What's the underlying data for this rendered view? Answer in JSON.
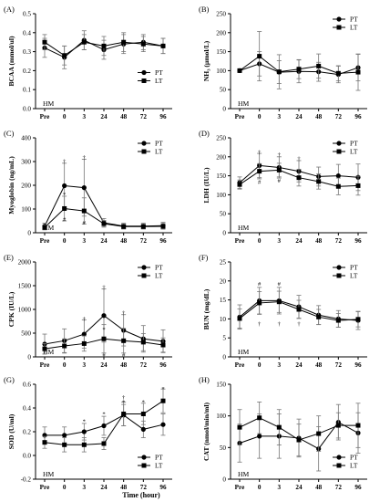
{
  "figure": {
    "x_axis_title": "Time (hour)",
    "categories": [
      "Pre",
      "0",
      "3",
      "24",
      "48",
      "72",
      "96"
    ]
  },
  "chart_data": [
    {
      "type": "line",
      "panel": "(A)",
      "ylabel": "BCAA (mmol/ul)",
      "annotation": "HM",
      "ylim": [
        0,
        0.5
      ],
      "yticks": [
        "0.0",
        "0.1",
        "0.2",
        "0.3",
        "0.4",
        "0.5"
      ],
      "legend_position": "right",
      "series": [
        {
          "name": "PT",
          "marker": "circle",
          "values": [
            0.32,
            0.27,
            0.36,
            0.31,
            0.34,
            0.35,
            0.33
          ],
          "err": [
            0.05,
            0.06,
            0.05,
            0.05,
            0.05,
            0.04,
            0.04
          ]
        },
        {
          "name": "LT",
          "marker": "square",
          "values": [
            0.35,
            0.28,
            0.35,
            0.33,
            0.35,
            0.34,
            0.33
          ],
          "err": [
            0.04,
            0.05,
            0.04,
            0.05,
            0.05,
            0.04,
            0.04
          ]
        }
      ],
      "marks": []
    },
    {
      "type": "line",
      "panel": "(B)",
      "ylabel": "NH₃ (μmol/L)",
      "annotation": "HM",
      "ylim": [
        0,
        250
      ],
      "yticks": [
        "0",
        "50",
        "100",
        "150",
        "200",
        "250"
      ],
      "legend_position": "top-right",
      "series": [
        {
          "name": "PT",
          "marker": "circle",
          "values": [
            100,
            118,
            96,
            98,
            97,
            90,
            108
          ],
          "err": [
            0,
            32,
            30,
            30,
            25,
            22,
            35
          ]
        },
        {
          "name": "LT",
          "marker": "square",
          "values": [
            100,
            138,
            97,
            104,
            112,
            93,
            96
          ],
          "err": [
            0,
            65,
            45,
            25,
            32,
            20,
            48
          ]
        }
      ],
      "marks": []
    },
    {
      "type": "line",
      "panel": "(C)",
      "ylabel": "Myoglobin (ng/mL)",
      "annotation": "HM",
      "ylim": [
        0,
        400
      ],
      "yticks": [
        "0",
        "100",
        "200",
        "300",
        "400"
      ],
      "legend_position": "top-right",
      "series": [
        {
          "name": "PT",
          "marker": "circle",
          "values": [
            28,
            198,
            190,
            42,
            28,
            28,
            30
          ],
          "err": [
            12,
            95,
            120,
            18,
            12,
            12,
            14
          ]
        },
        {
          "name": "LT",
          "marker": "square",
          "values": [
            22,
            102,
            92,
            38,
            26,
            26,
            27
          ],
          "err": [
            10,
            52,
            55,
            14,
            10,
            10,
            12
          ]
        }
      ],
      "marks": [
        {
          "text": "†",
          "cat": 1,
          "value": 300
        },
        {
          "text": "*",
          "cat": 1,
          "value": 162
        },
        {
          "text": "#",
          "cat": 1,
          "value": 56
        },
        {
          "text": "†",
          "cat": 2,
          "value": 318
        },
        {
          "text": "#",
          "cat": 2,
          "value": 42
        }
      ]
    },
    {
      "type": "line",
      "panel": "(D)",
      "ylabel": "LDH (IU/L)",
      "annotation": "HM",
      "ylim": [
        0,
        250
      ],
      "yticks": [
        "0",
        "50",
        "100",
        "150",
        "200",
        "250"
      ],
      "legend_position": "top-right",
      "series": [
        {
          "name": "PT",
          "marker": "circle",
          "values": [
            132,
            177,
            172,
            162,
            148,
            150,
            146
          ],
          "err": [
            15,
            32,
            28,
            28,
            25,
            30,
            35
          ]
        },
        {
          "name": "LT",
          "marker": "square",
          "values": [
            127,
            162,
            165,
            145,
            135,
            122,
            124
          ],
          "err": [
            12,
            20,
            18,
            22,
            20,
            22,
            25
          ]
        }
      ],
      "marks": [
        {
          "text": "†",
          "cat": 1,
          "value": 212
        },
        {
          "text": "#",
          "cat": 1,
          "value": 134
        },
        {
          "text": "†",
          "cat": 2,
          "value": 205
        },
        {
          "text": "#",
          "cat": 2,
          "value": 137
        },
        {
          "text": "†",
          "cat": 3,
          "value": 195
        }
      ]
    },
    {
      "type": "line",
      "panel": "(E)",
      "ylabel": "CPK (IU/L)",
      "annotation": "HM",
      "ylim": [
        0,
        2000
      ],
      "yticks": [
        "0",
        "500",
        "1000",
        "1500",
        "2000"
      ],
      "legend_position": "top-right",
      "series": [
        {
          "name": "PT",
          "marker": "circle",
          "values": [
            270,
            340,
            480,
            870,
            560,
            380,
            330
          ],
          "err": [
            210,
            250,
            300,
            560,
            330,
            280,
            240
          ]
        },
        {
          "name": "LT",
          "marker": "square",
          "values": [
            170,
            230,
            280,
            380,
            340,
            310,
            250
          ],
          "err": [
            110,
            150,
            160,
            300,
            260,
            180,
            150
          ]
        }
      ],
      "marks": [
        {
          "text": "†",
          "cat": 2,
          "value": 800
        },
        {
          "text": "†",
          "cat": 3,
          "value": 1460
        },
        {
          "text": "*",
          "cat": 3,
          "value": 575
        },
        {
          "text": "#",
          "cat": 3,
          "value": 40
        },
        {
          "text": "†",
          "cat": 4,
          "value": 920
        },
        {
          "text": "#",
          "cat": 4,
          "value": 40
        }
      ]
    },
    {
      "type": "line",
      "panel": "(F)",
      "ylabel": "BUN (mg/dL)",
      "annotation": "HM",
      "ylim": [
        0,
        25
      ],
      "yticks": [
        "0",
        "5",
        "10",
        "15",
        "20",
        "25"
      ],
      "legend_position": "top-right",
      "series": [
        {
          "name": "PT",
          "marker": "circle",
          "values": [
            10.5,
            14.8,
            14.8,
            13.2,
            11.0,
            10.0,
            9.6
          ],
          "err": [
            3.2,
            3.5,
            3.5,
            3.0,
            2.5,
            2.2,
            2.4
          ]
        },
        {
          "name": "LT",
          "marker": "square",
          "values": [
            10.1,
            14.2,
            14.5,
            12.5,
            10.5,
            9.6,
            9.9
          ],
          "err": [
            2.5,
            3.0,
            2.8,
            2.4,
            2.0,
            1.8,
            2.0
          ]
        }
      ],
      "marks": [
        {
          "text": "#",
          "cat": 1,
          "value": 19.2
        },
        {
          "text": "†",
          "cat": 1,
          "value": 8.6
        },
        {
          "text": "#",
          "cat": 2,
          "value": 19.2
        },
        {
          "text": "†",
          "cat": 2,
          "value": 8.6
        },
        {
          "text": "†",
          "cat": 3,
          "value": 8.6
        }
      ]
    },
    {
      "type": "line",
      "panel": "(G)",
      "ylabel": "SOD (U/ml)",
      "annotation": "HM",
      "ylim": [
        -0.2,
        0.6
      ],
      "yticks": [
        "-0.2",
        "0.0",
        "0.2",
        "0.4",
        "0.6"
      ],
      "legend_position": "bottom-right",
      "series": [
        {
          "name": "PT",
          "marker": "circle",
          "values": [
            0.17,
            0.17,
            0.2,
            0.25,
            0.34,
            0.22,
            0.26
          ],
          "err": [
            0.07,
            0.07,
            0.07,
            0.08,
            0.09,
            0.07,
            0.09
          ]
        },
        {
          "name": "LT",
          "marker": "square",
          "values": [
            0.11,
            0.09,
            0.09,
            0.1,
            0.35,
            0.35,
            0.46
          ],
          "err": [
            0.05,
            0.06,
            0.06,
            0.05,
            0.1,
            0.09,
            0.1
          ]
        }
      ],
      "marks": [
        {
          "text": "*",
          "cat": 2,
          "value": 0.29
        },
        {
          "text": "*",
          "cat": 3,
          "value": 0.35
        },
        {
          "text": "†",
          "cat": 4,
          "value": 0.49
        },
        {
          "text": "*",
          "cat": 4,
          "value": 0.45
        },
        {
          "text": "*",
          "cat": 5,
          "value": 0.45
        },
        {
          "text": "*",
          "cat": 6,
          "value": 0.56
        }
      ]
    },
    {
      "type": "line",
      "panel": "(H)",
      "ylabel": "CAT (nmol/min/ml)",
      "annotation": "HM",
      "ylim": [
        0,
        150
      ],
      "yticks": [
        "0",
        "50",
        "100",
        "150"
      ],
      "legend_position": "bottom-right",
      "series": [
        {
          "name": "PT",
          "marker": "circle",
          "values": [
            57,
            68,
            68,
            65,
            48,
            90,
            73
          ],
          "err": [
            30,
            35,
            35,
            30,
            35,
            28,
            32
          ]
        },
        {
          "name": "LT",
          "marker": "square",
          "values": [
            82,
            97,
            82,
            62,
            72,
            85,
            85
          ],
          "err": [
            28,
            25,
            28,
            25,
            28,
            20,
            35
          ]
        }
      ],
      "marks": []
    }
  ]
}
